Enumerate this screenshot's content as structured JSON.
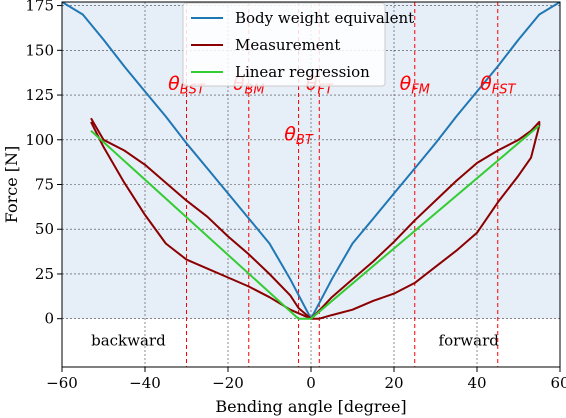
{
  "chart_data": {
    "type": "line",
    "xlabel": "Bending angle [degree]",
    "ylabel": "Force [N]",
    "xlim": [
      -60,
      60
    ],
    "ylim": [
      -27,
      177
    ],
    "xticks": [
      -60,
      -40,
      -20,
      0,
      20,
      40,
      60
    ],
    "yticks": [
      0,
      25,
      50,
      75,
      100,
      125,
      150,
      175
    ],
    "grid": true,
    "shaded_region": {
      "y_from": 0,
      "y_to": 177,
      "color": "#e6eef7"
    },
    "legend": {
      "placement": "top-center",
      "entries": [
        {
          "label": "Body weight equivalent",
          "color": "#1f77b4"
        },
        {
          "label": "Measurement",
          "color": "#8b0000"
        },
        {
          "label": "Linear regression",
          "color": "#33cc33"
        }
      ]
    },
    "series": [
      {
        "name": "Body weight equivalent",
        "color": "#1f77b4",
        "x": [
          -60,
          -55,
          -50,
          -45,
          -40,
          -35,
          -30,
          -25,
          -20,
          -15,
          -10,
          -5,
          0,
          5,
          10,
          15,
          20,
          25,
          30,
          35,
          40,
          45,
          50,
          55,
          60
        ],
        "y": [
          177,
          170,
          156,
          141,
          127,
          113,
          98,
          84,
          70,
          56,
          42,
          22,
          0,
          22,
          42,
          56,
          70,
          84,
          98,
          113,
          127,
          141,
          156,
          170,
          177
        ]
      },
      {
        "name": "Measurement",
        "color": "#8b0000",
        "x": [
          -53,
          -50,
          -45,
          -40,
          -35,
          -30,
          -25,
          -20,
          -15,
          -10,
          -5,
          -3,
          0,
          3,
          5,
          10,
          15,
          20,
          25,
          30,
          35,
          40,
          45,
          50,
          53,
          55,
          55,
          53,
          50,
          45,
          40,
          35,
          30,
          25,
          20,
          15,
          10,
          5,
          2,
          0,
          -2,
          -5,
          -10,
          -15,
          -20,
          -25,
          -30,
          -35,
          -40,
          -45,
          -50,
          -53
        ],
        "y": [
          112,
          100,
          94,
          86,
          76,
          66,
          57,
          46,
          36,
          25,
          13,
          6,
          0,
          7,
          12,
          22,
          32,
          43,
          55,
          66,
          77,
          87,
          94,
          100,
          105,
          110,
          108,
          90,
          80,
          65,
          48,
          38,
          29,
          20,
          14,
          10,
          5,
          2,
          0,
          0,
          2,
          5,
          12,
          18,
          23,
          28,
          33,
          42,
          58,
          76,
          96,
          110
        ]
      },
      {
        "name": "Linear regression",
        "color": "#33cc33",
        "x": [
          -53,
          -3,
          0,
          55
        ],
        "y": [
          105,
          0,
          0,
          108
        ]
      }
    ],
    "vlines": [
      {
        "label": "θ",
        "subscript": "BST",
        "x": -30,
        "label_y": 128
      },
      {
        "label": "θ",
        "subscript": "BM",
        "x": -15,
        "label_y": 128
      },
      {
        "label": "θ",
        "subscript": "BT",
        "x": -3,
        "label_y": 100
      },
      {
        "label": "θ",
        "subscript": "FT",
        "x": 2,
        "label_y": 128
      },
      {
        "label": "θ",
        "subscript": "FM",
        "x": 25,
        "label_y": 128
      },
      {
        "label": "θ",
        "subscript": "FST",
        "x": 45,
        "label_y": 128
      }
    ],
    "region_labels": [
      {
        "text": "backward",
        "x": -44,
        "y": -15
      },
      {
        "text": "forward",
        "x": 38,
        "y": -15
      }
    ]
  }
}
